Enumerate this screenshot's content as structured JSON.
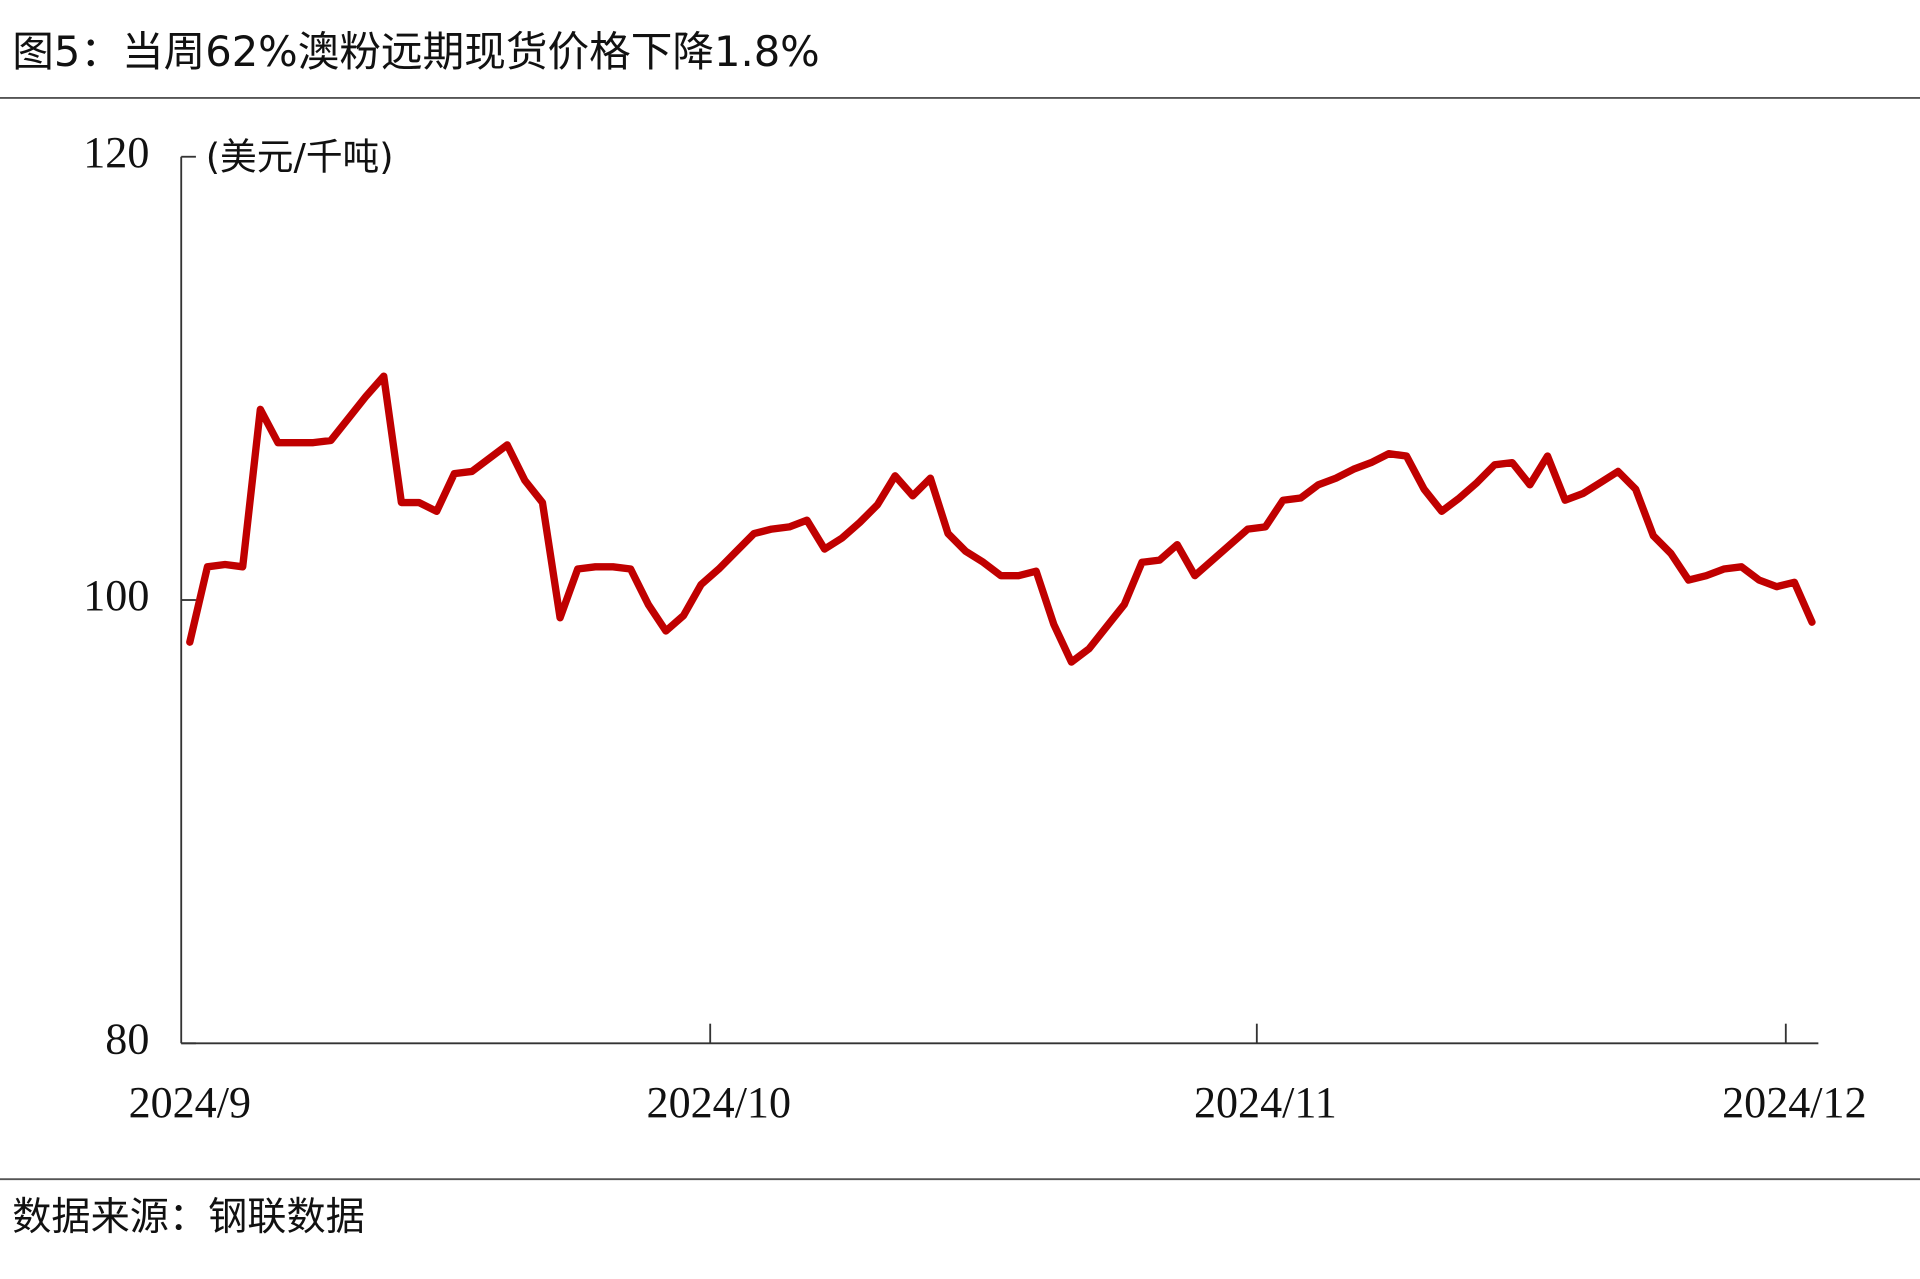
{
  "title": "图5：当周62%澳粉远期现货价格下降1.8%",
  "source": "数据来源：钢联数据",
  "chart_data": {
    "type": "line",
    "y_label": "(美元/千吨)",
    "color": "#c00000",
    "categories": [
      "2024/9",
      null,
      null,
      null,
      null,
      null,
      null,
      null,
      null,
      null,
      null,
      null,
      null,
      null,
      null,
      null,
      null,
      null,
      null,
      null,
      null,
      null,
      null,
      null,
      null,
      null,
      null,
      null,
      null,
      null,
      "2024/10",
      null,
      null,
      null,
      null,
      null,
      null,
      null,
      null,
      null,
      null,
      null,
      null,
      null,
      null,
      null,
      null,
      null,
      null,
      null,
      null,
      null,
      null,
      null,
      null,
      null,
      null,
      null,
      null,
      null,
      null,
      "2024/11",
      null,
      null,
      null,
      null,
      null,
      null,
      null,
      null,
      null,
      null,
      null,
      null,
      null,
      null,
      null,
      null,
      null,
      null,
      null,
      null,
      null,
      null,
      null,
      null,
      null,
      null,
      null,
      null,
      null,
      "2024/12",
      null
    ],
    "values": [
      98.1,
      101.5,
      101.6,
      101.5,
      108.6,
      107.1,
      107.1,
      107.1,
      107.2,
      108.2,
      109.2,
      110.1,
      104.4,
      104.4,
      104.0,
      105.7,
      105.8,
      106.4,
      107.0,
      105.4,
      104.4,
      99.2,
      101.4,
      101.5,
      101.5,
      101.4,
      99.8,
      98.6,
      99.3,
      100.7,
      101.4,
      102.2,
      103.0,
      103.2,
      103.3,
      103.6,
      102.3,
      102.8,
      103.5,
      104.3,
      105.6,
      104.7,
      105.5,
      103.0,
      102.2,
      101.7,
      101.1,
      101.1,
      101.3,
      98.9,
      97.2,
      97.8,
      98.8,
      99.8,
      101.7,
      101.8,
      102.5,
      101.1,
      101.8,
      102.5,
      103.2,
      103.3,
      104.5,
      104.6,
      105.2,
      105.5,
      105.9,
      106.2,
      106.6,
      106.5,
      105.0,
      104.0,
      104.6,
      105.3,
      106.1,
      106.2,
      105.2,
      106.5,
      104.5,
      104.8,
      105.3,
      105.8,
      105.0,
      102.9,
      102.1,
      100.9,
      101.1,
      101.4,
      101.5,
      100.9,
      100.6,
      100.8,
      99.0
    ],
    "ylim": [
      80,
      120
    ],
    "yticks": [
      80,
      100,
      120
    ]
  }
}
